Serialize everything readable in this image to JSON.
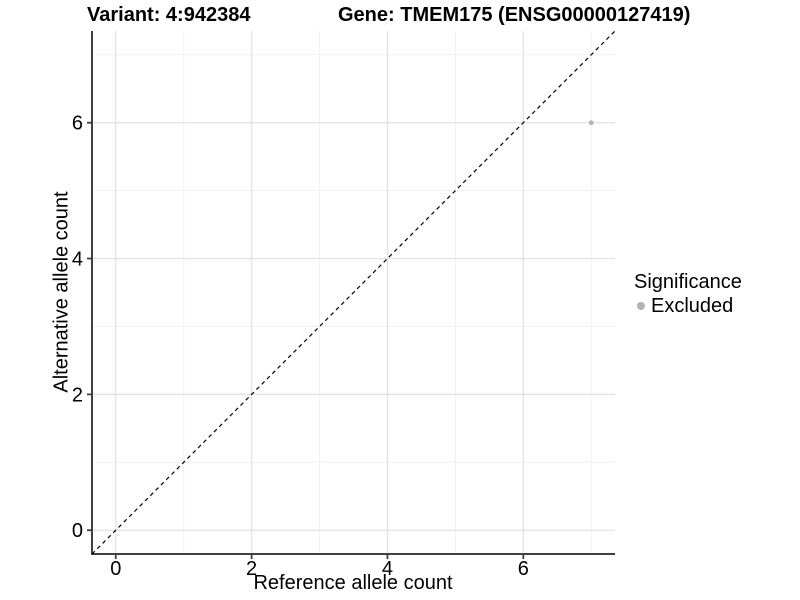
{
  "header": {
    "variant_title": "Variant: 4:942384",
    "gene_title": "Gene: TMEM175 (ENSG00000127419)"
  },
  "chart_data": {
    "type": "scatter",
    "title": "Variant: 4:942384  Gene: TMEM175 (ENSG00000127419)",
    "xlabel": "Reference allele count",
    "ylabel": "Alternative allele count",
    "xlim": [
      -0.35,
      7.35
    ],
    "ylim": [
      -0.35,
      7.35
    ],
    "x_ticks": [
      0,
      2,
      4,
      6
    ],
    "y_ticks": [
      0,
      2,
      4,
      6
    ],
    "x_minor_ticks": [
      1,
      3,
      5,
      7
    ],
    "y_minor_ticks": [
      1,
      3,
      5,
      7
    ],
    "grid": true,
    "series": [
      {
        "name": "Excluded",
        "color": "#b3b3b3",
        "points": [
          {
            "x": 7,
            "y": 6
          }
        ],
        "point_radius": 2.4
      }
    ],
    "reference_line": {
      "type": "identity y=x",
      "from": [
        -0.35,
        -0.35
      ],
      "to": [
        7.35,
        7.35
      ],
      "style": "dashed",
      "color": "#000000"
    },
    "legend": {
      "title": "Significance",
      "position": "right",
      "items": [
        {
          "label": "Excluded",
          "color": "#b3b3b3"
        }
      ]
    },
    "colors": {
      "background": "#ffffff",
      "grid_major": "#e4e4e4",
      "grid_minor": "#f1f1f1",
      "axis_line": "#404040",
      "tick_mark": "#404040",
      "tick_label": "#000000"
    }
  }
}
